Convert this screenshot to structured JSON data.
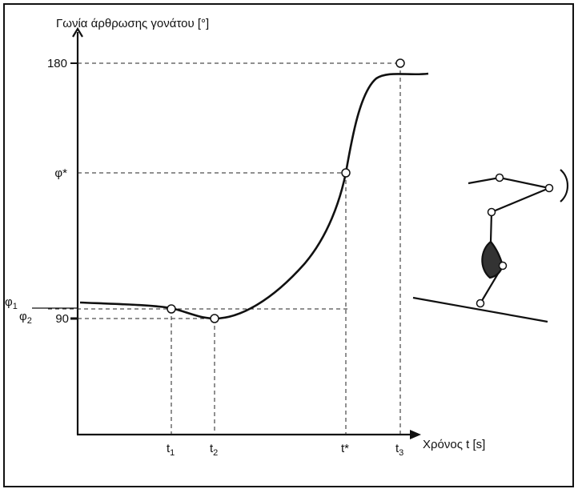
{
  "y_axis": {
    "label": "Γωνία άρθρωσης γονάτου [°]",
    "ticks": [
      {
        "base": "180"
      },
      {
        "base": "φ*"
      },
      {
        "base": "φ",
        "sub": "1"
      },
      {
        "base": "φ",
        "sub": "2"
      },
      {
        "base": "90"
      }
    ]
  },
  "x_axis": {
    "label": "Χρόνος t [s]",
    "ticks": [
      {
        "base": "t",
        "sub": "1"
      },
      {
        "base": "t",
        "sub": "2"
      },
      {
        "base": "t*"
      },
      {
        "base": "t",
        "sub": "3"
      }
    ]
  }
}
